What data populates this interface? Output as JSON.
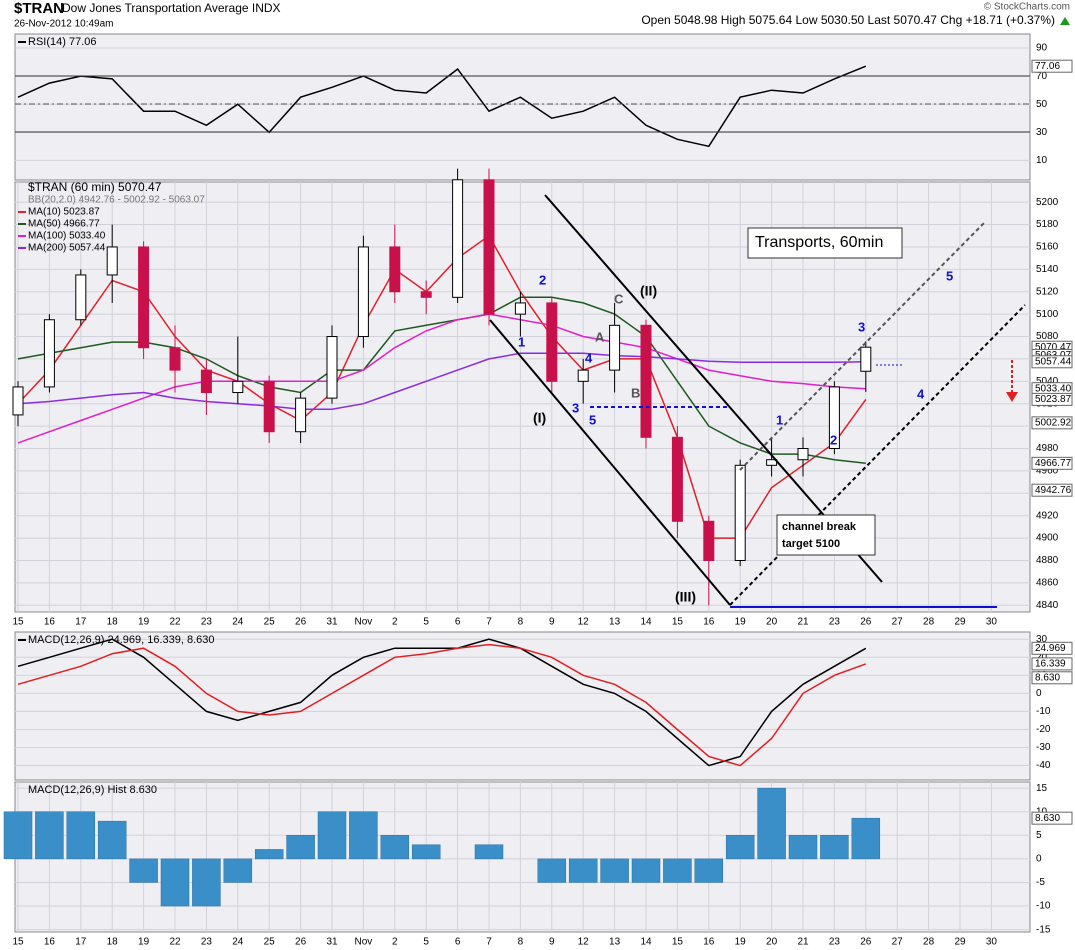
{
  "header": {
    "symbol": "$TRAN",
    "name": "Dow Jones Transportation Average INDX",
    "date": "26-Nov-2012 10:49am",
    "quote": "Open 5048.98  High 5075.64  Low 5030.50  Last 5070.47  Chg +18.71 (+0.37%)",
    "copyright": "© StockCharts.com"
  },
  "chart_data": [
    {
      "type": "line",
      "ylim": [
        -4,
        100
      ],
      "yticks": [
        10,
        30,
        50,
        70,
        90
      ],
      "series": [
        {
          "name": "RSI(14) 77.06",
          "color": "#000000",
          "values": [
            55,
            65,
            70,
            68,
            45,
            45,
            35,
            50,
            30,
            55,
            62,
            70,
            60,
            58,
            75,
            45,
            55,
            40,
            45,
            55,
            35,
            25,
            20,
            55,
            60,
            58,
            68,
            77.06,
            null,
            null,
            null,
            null
          ]
        }
      ],
      "last_labels": [
        77.06
      ]
    },
    {
      "type": "candlestick",
      "legend": "$TRAN (60 min) 5070.47",
      "bands_legend": "BB(20,2.0) 4942.76 - 5002.92 - 5063.07",
      "categories": [
        "15",
        "16",
        "17",
        "18",
        "19",
        "22",
        "23",
        "24",
        "25",
        "26",
        "31",
        "Nov",
        "2",
        "5",
        "6",
        "7",
        "8",
        "9",
        "12",
        "13",
        "14",
        "15",
        "16",
        "19",
        "20",
        "21",
        "23",
        "26",
        "27",
        "28",
        "29",
        "30"
      ],
      "open": [
        5010,
        5035,
        5095,
        5135,
        5160,
        5070,
        5050,
        5030,
        5040,
        4995,
        5025,
        5080,
        5160,
        5120,
        5115,
        5220,
        5100,
        5110,
        5040,
        5050,
        5090,
        4990,
        4915,
        4880,
        4965,
        4970,
        4980,
        5048.98,
        null,
        null,
        null,
        null
      ],
      "high": [
        5040,
        5100,
        5140,
        5180,
        5165,
        5090,
        5060,
        5080,
        5045,
        5030,
        5090,
        5170,
        5180,
        5130,
        5230,
        5230,
        5120,
        5115,
        5060,
        5110,
        5095,
        5000,
        4920,
        4970,
        4990,
        4990,
        5040,
        5075.64,
        null,
        null,
        null,
        null
      ],
      "low": [
        5000,
        5030,
        5090,
        5110,
        5060,
        5030,
        5010,
        5020,
        4985,
        4985,
        5020,
        5070,
        5110,
        5100,
        5110,
        5090,
        5080,
        5030,
        5020,
        5030,
        4980,
        4900,
        4840,
        4875,
        4955,
        4955,
        4975,
        5030.5,
        null,
        null,
        null,
        null
      ],
      "close": [
        5035,
        5095,
        5135,
        5160,
        5070,
        5050,
        5030,
        5040,
        4995,
        5025,
        5080,
        5160,
        5120,
        5115,
        5220,
        5100,
        5110,
        5040,
        5050,
        5090,
        4990,
        4915,
        4880,
        4965,
        4970,
        4980,
        5035,
        5070.47,
        null,
        null,
        null,
        null
      ],
      "color_up": "#000000",
      "color_down": "#c8104a",
      "series": [
        {
          "name": "MA(10) 5023.87",
          "color": "#e0202a",
          "values": [
            5020,
            5050,
            5090,
            5130,
            5120,
            5080,
            5050,
            5040,
            5020,
            5005,
            5030,
            5090,
            5140,
            5120,
            5150,
            5170,
            5120,
            5080,
            5050,
            5060,
            5060,
            4990,
            4900,
            4900,
            4945,
            4965,
            4985,
            5023.87,
            null,
            null,
            null,
            null
          ]
        },
        {
          "name": "MA(50) 4966.77",
          "color": "#1e5a1e",
          "values": [
            5060,
            5065,
            5070,
            5075,
            5075,
            5070,
            5060,
            5045,
            5035,
            5030,
            5050,
            5050,
            5085,
            5090,
            5095,
            5100,
            5115,
            5115,
            5110,
            5100,
            5080,
            5040,
            5000,
            4985,
            4975,
            4975,
            4970,
            4966.77,
            null,
            null,
            null,
            null
          ]
        },
        {
          "name": "MA(100) 5033.40",
          "color": "#e020c8",
          "values": [
            4985,
            4995,
            5005,
            5015,
            5025,
            5035,
            5040,
            5040,
            5040,
            5040,
            5040,
            5050,
            5070,
            5085,
            5095,
            5100,
            5095,
            5090,
            5080,
            5075,
            5070,
            5060,
            5050,
            5045,
            5040,
            5038,
            5035,
            5033.4,
            null,
            null,
            null,
            null
          ]
        },
        {
          "name": "MA(200) 5057.44",
          "color": "#8a2be2",
          "values": [
            5020,
            5022,
            5025,
            5028,
            5030,
            5025,
            5022,
            5020,
            5018,
            5015,
            5015,
            5020,
            5030,
            5040,
            5050,
            5060,
            5065,
            5065,
            5065,
            5063,
            5062,
            5060,
            5058,
            5057,
            5057,
            5057,
            5057,
            5057.44,
            null,
            null,
            null,
            null
          ]
        }
      ],
      "ylim": [
        4834,
        5218
      ],
      "yticks": [
        4840,
        4860,
        4880,
        4900,
        4920,
        4940,
        4960,
        4980,
        5000,
        5020,
        5040,
        5060,
        5080,
        5100,
        5120,
        5140,
        5160,
        5180,
        5200
      ],
      "last_labels": [
        5070.47,
        5063.07,
        5057.44,
        {
          "value": 5033.4,
          "label": "5033.40"
        },
        5023.87,
        5002.92,
        4966.77,
        4942.76
      ],
      "annotations": [
        "Transports, 60min",
        "channel break",
        "target 5100",
        "(I)",
        "(II)",
        "(III)",
        "1",
        "2",
        "3",
        "4",
        "5",
        "1",
        "2",
        "3",
        "4",
        "5",
        "A",
        "B",
        "C"
      ]
    },
    {
      "type": "line",
      "ylim": [
        -48,
        34
      ],
      "yticks": [
        30,
        20,
        10,
        0,
        -10,
        -20,
        -30,
        -40
      ],
      "series": [
        {
          "name": "MACD(12,26,9) 24.969, 16.339, 8.630",
          "color": "#000000",
          "values": [
            15,
            20,
            25,
            30,
            20,
            5,
            -10,
            -15,
            -10,
            -5,
            10,
            20,
            25,
            25,
            25,
            30,
            25,
            15,
            5,
            0,
            -10,
            -25,
            -40,
            -35,
            -10,
            5,
            15,
            24.969,
            null,
            null,
            null,
            null
          ]
        },
        {
          "name": "Signal",
          "color": "#e02020",
          "values": [
            5,
            10,
            15,
            22,
            25,
            15,
            0,
            -10,
            -12,
            -10,
            0,
            10,
            20,
            22,
            25,
            27,
            25,
            20,
            10,
            5,
            -5,
            -20,
            -35,
            -40,
            -25,
            0,
            10,
            16.339,
            null,
            null,
            null,
            null
          ]
        }
      ],
      "last_labels": [
        24.969,
        16.339,
        {
          "value": 8.63,
          "label": "8.630"
        }
      ]
    },
    {
      "type": "bar",
      "legend": "MACD(12,26,9) Hist 8.630",
      "color": "#3a8fc8",
      "categories": [
        "15",
        "16",
        "17",
        "18",
        "19",
        "22",
        "23",
        "24",
        "25",
        "26",
        "31",
        "Nov",
        "2",
        "5",
        "6",
        "7",
        "8",
        "9",
        "12",
        "13",
        "14",
        "15",
        "16",
        "19",
        "20",
        "21",
        "23",
        "26",
        "27",
        "28",
        "29",
        "30"
      ],
      "values": [
        10,
        10,
        10,
        8,
        -5,
        -10,
        -10,
        -5,
        2,
        5,
        10,
        10,
        5,
        3,
        0,
        3,
        0,
        -5,
        -5,
        -5,
        -5,
        -5,
        -5,
        5,
        15,
        5,
        5,
        8.63,
        null,
        null,
        null,
        null
      ],
      "ylim": [
        -15.5,
        16.3
      ],
      "yticks": [
        15,
        10,
        5,
        0,
        -5,
        -10,
        -15
      ],
      "last_labels": [
        {
          "value": 8.63,
          "label": "8.630"
        }
      ]
    }
  ]
}
